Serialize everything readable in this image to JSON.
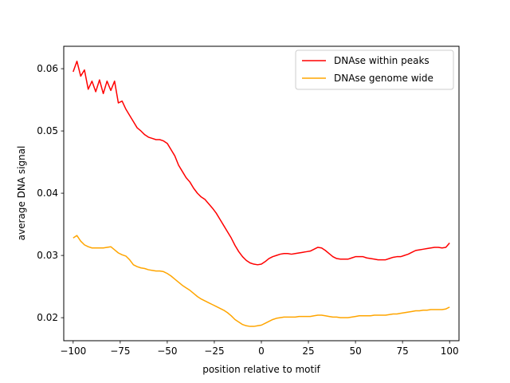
{
  "chart_data": {
    "type": "line",
    "title": "",
    "xlabel": "position relative to motif",
    "ylabel": "average DNA signal",
    "xlim": [
      -105,
      105
    ],
    "ylim": [
      0.0163,
      0.0636
    ],
    "xticks": [
      -100,
      -75,
      -50,
      -25,
      0,
      25,
      50,
      75,
      100
    ],
    "xtick_labels": [
      "−100",
      "−75",
      "−50",
      "−25",
      "0",
      "25",
      "50",
      "75",
      "100"
    ],
    "yticks": [
      0.02,
      0.03,
      0.04,
      0.05,
      0.06
    ],
    "ytick_labels": [
      "0.02",
      "0.03",
      "0.04",
      "0.05",
      "0.06"
    ],
    "grid": false,
    "legend_position": "top-right",
    "series": [
      {
        "name": "DNAse within peaks",
        "color": "#ff0000",
        "x": [
          -100,
          -98,
          -96,
          -94,
          -92,
          -90,
          -88,
          -86,
          -84,
          -82,
          -80,
          -78,
          -76,
          -74,
          -72,
          -70,
          -68,
          -66,
          -64,
          -62,
          -60,
          -58,
          -56,
          -54,
          -52,
          -50,
          -48,
          -46,
          -44,
          -42,
          -40,
          -38,
          -36,
          -34,
          -32,
          -30,
          -28,
          -26,
          -24,
          -22,
          -20,
          -18,
          -16,
          -14,
          -12,
          -10,
          -8,
          -6,
          -4,
          -2,
          0,
          2,
          4,
          6,
          8,
          10,
          12,
          14,
          16,
          18,
          20,
          22,
          24,
          26,
          28,
          30,
          32,
          34,
          36,
          38,
          40,
          42,
          44,
          46,
          48,
          50,
          52,
          54,
          56,
          58,
          60,
          62,
          64,
          66,
          68,
          70,
          72,
          74,
          76,
          78,
          80,
          82,
          84,
          86,
          88,
          90,
          92,
          94,
          96,
          98,
          100
        ],
        "y": [
          0.0595,
          0.0612,
          0.0588,
          0.0598,
          0.0567,
          0.058,
          0.0563,
          0.0582,
          0.056,
          0.058,
          0.0565,
          0.058,
          0.0545,
          0.0548,
          0.0535,
          0.0525,
          0.0515,
          0.0505,
          0.05,
          0.0494,
          0.049,
          0.0488,
          0.0486,
          0.0486,
          0.0484,
          0.048,
          0.047,
          0.046,
          0.0445,
          0.0435,
          0.0425,
          0.0418,
          0.0408,
          0.04,
          0.0394,
          0.039,
          0.0383,
          0.0376,
          0.0368,
          0.0358,
          0.0348,
          0.0338,
          0.0328,
          0.0316,
          0.0306,
          0.0298,
          0.0292,
          0.0288,
          0.0286,
          0.0285,
          0.0286,
          0.029,
          0.0295,
          0.0298,
          0.03,
          0.0302,
          0.0303,
          0.0303,
          0.0302,
          0.0303,
          0.0304,
          0.0305,
          0.0306,
          0.0307,
          0.031,
          0.0313,
          0.0312,
          0.0308,
          0.0303,
          0.0298,
          0.0295,
          0.0294,
          0.0294,
          0.0294,
          0.0296,
          0.0298,
          0.0298,
          0.0298,
          0.0296,
          0.0295,
          0.0294,
          0.0293,
          0.0293,
          0.0293,
          0.0295,
          0.0297,
          0.0298,
          0.0298,
          0.03,
          0.0302,
          0.0305,
          0.0308,
          0.0309,
          0.031,
          0.0311,
          0.0312,
          0.0313,
          0.0313,
          0.0312,
          0.0313,
          0.032
        ]
      },
      {
        "name": "DNAse genome wide",
        "color": "#ffa500",
        "x": [
          -100,
          -98,
          -96,
          -94,
          -92,
          -90,
          -88,
          -86,
          -84,
          -82,
          -80,
          -78,
          -76,
          -74,
          -72,
          -70,
          -68,
          -66,
          -64,
          -62,
          -60,
          -58,
          -56,
          -54,
          -52,
          -50,
          -48,
          -46,
          -44,
          -42,
          -40,
          -38,
          -36,
          -34,
          -32,
          -30,
          -28,
          -26,
          -24,
          -22,
          -20,
          -18,
          -16,
          -14,
          -12,
          -10,
          -8,
          -6,
          -4,
          -2,
          0,
          2,
          4,
          6,
          8,
          10,
          12,
          14,
          16,
          18,
          20,
          22,
          24,
          26,
          28,
          30,
          32,
          34,
          36,
          38,
          40,
          42,
          44,
          46,
          48,
          50,
          52,
          54,
          56,
          58,
          60,
          62,
          64,
          66,
          68,
          70,
          72,
          74,
          76,
          78,
          80,
          82,
          84,
          86,
          88,
          90,
          92,
          94,
          96,
          98,
          100
        ],
        "y": [
          0.0328,
          0.0332,
          0.0323,
          0.0317,
          0.0314,
          0.0312,
          0.0312,
          0.0312,
          0.0312,
          0.0313,
          0.0314,
          0.0309,
          0.0304,
          0.0301,
          0.0299,
          0.0293,
          0.0285,
          0.0282,
          0.028,
          0.0279,
          0.0277,
          0.0276,
          0.0275,
          0.0275,
          0.0274,
          0.0271,
          0.0267,
          0.0262,
          0.0257,
          0.0252,
          0.0248,
          0.0244,
          0.0239,
          0.0234,
          0.023,
          0.0227,
          0.0224,
          0.0221,
          0.0218,
          0.0215,
          0.0212,
          0.0208,
          0.0203,
          0.0197,
          0.0193,
          0.0189,
          0.0187,
          0.0186,
          0.0186,
          0.0187,
          0.0188,
          0.0191,
          0.0194,
          0.0197,
          0.0199,
          0.02,
          0.0201,
          0.0201,
          0.0201,
          0.0201,
          0.0202,
          0.0202,
          0.0202,
          0.0202,
          0.0203,
          0.0204,
          0.0204,
          0.0203,
          0.0202,
          0.0201,
          0.0201,
          0.02,
          0.02,
          0.02,
          0.0201,
          0.0202,
          0.0203,
          0.0203,
          0.0203,
          0.0203,
          0.0204,
          0.0204,
          0.0204,
          0.0204,
          0.0205,
          0.0206,
          0.0206,
          0.0207,
          0.0208,
          0.0209,
          0.021,
          0.0211,
          0.0211,
          0.0212,
          0.0212,
          0.0213,
          0.0213,
          0.0213,
          0.0213,
          0.0214,
          0.0217
        ]
      }
    ]
  }
}
